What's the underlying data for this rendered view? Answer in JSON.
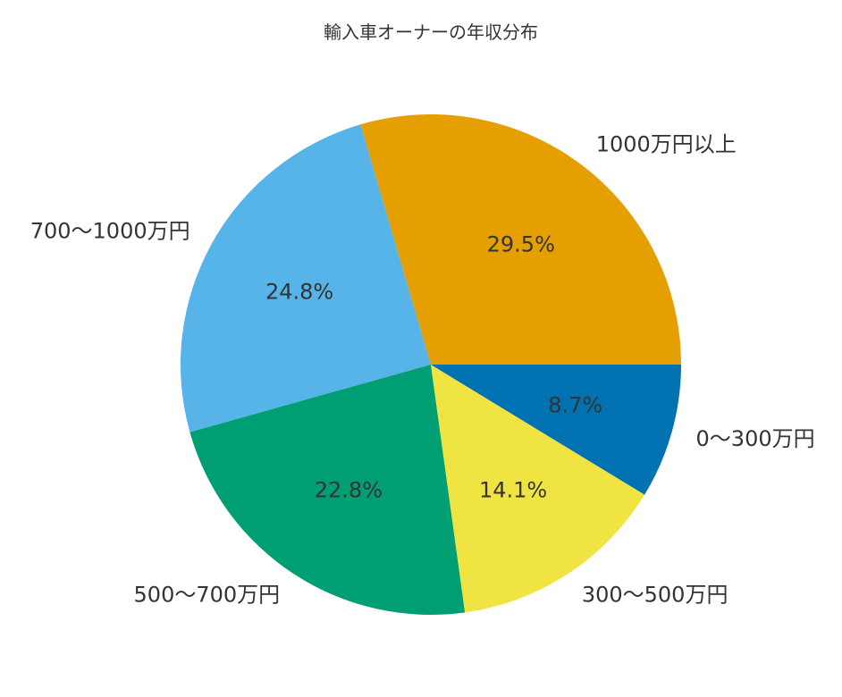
{
  "figure": {
    "background": "#ffffff",
    "text_color": "#333333"
  },
  "chart_data": {
    "type": "pie",
    "title": "輸入車オーナーの年収分布",
    "labels": [
      "1000万円以上",
      "700〜1000万円",
      "500〜700万円",
      "300〜500万円",
      "0〜300万円"
    ],
    "values": [
      29.5,
      24.8,
      22.8,
      14.1,
      8.7
    ],
    "pct_labels": [
      "29.5%",
      "24.8%",
      "22.8%",
      "14.1%",
      "8.7%"
    ],
    "colors": [
      "#E69F00",
      "#56B4E9",
      "#009E73",
      "#F0E442",
      "#0072B2"
    ],
    "start_angle": 0,
    "direction": "counterclockwise",
    "label_distance": 1.1,
    "pct_distance": 0.6,
    "legend": "none",
    "grid": "off"
  }
}
